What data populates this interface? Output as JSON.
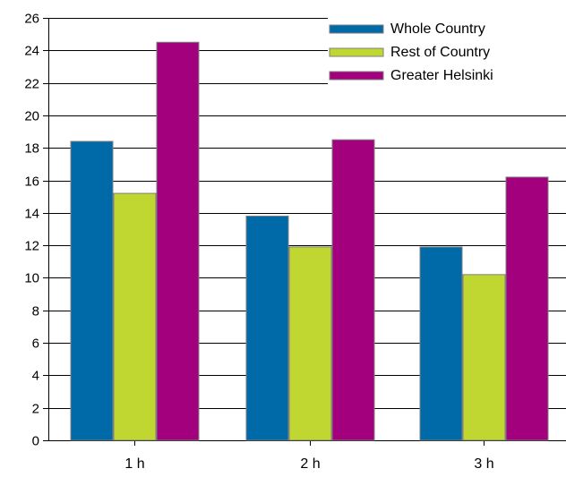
{
  "chart_data": {
    "type": "bar",
    "categories": [
      "1 h",
      "2 h",
      "3 h"
    ],
    "series": [
      {
        "name": "Whole Country",
        "color": "#0069a8",
        "values": [
          18.4,
          13.8,
          11.9
        ]
      },
      {
        "name": "Rest of Country",
        "color": "#bfd730",
        "values": [
          15.2,
          11.9,
          10.2
        ]
      },
      {
        "name": "Greater Helsinki",
        "color": "#a3007e",
        "values": [
          24.5,
          18.5,
          16.2
        ]
      }
    ],
    "title": "",
    "xlabel": "",
    "ylabel": "",
    "ylim": [
      0,
      26
    ],
    "yticks": [
      0,
      2,
      4,
      6,
      8,
      10,
      12,
      14,
      16,
      18,
      20,
      22,
      24,
      26
    ],
    "grid": true,
    "legend": "top-right"
  }
}
